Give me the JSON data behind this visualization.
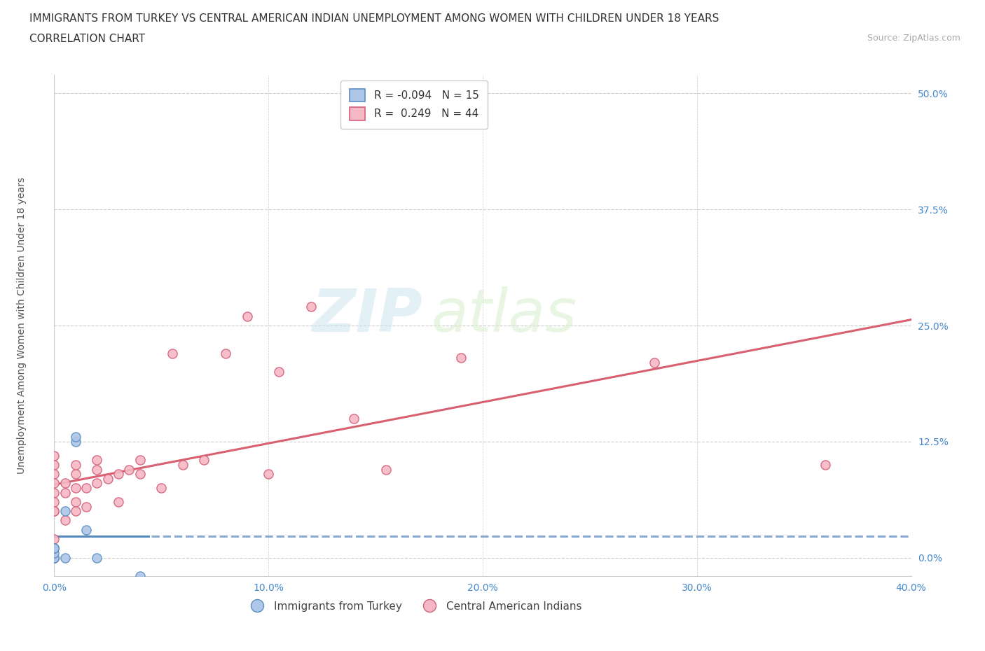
{
  "title_line1": "IMMIGRANTS FROM TURKEY VS CENTRAL AMERICAN INDIAN UNEMPLOYMENT AMONG WOMEN WITH CHILDREN UNDER 18 YEARS",
  "title_line2": "CORRELATION CHART",
  "source_text": "Source: ZipAtlas.com",
  "ylabel": "Unemployment Among Women with Children Under 18 years",
  "xlim": [
    0.0,
    0.4
  ],
  "ylim": [
    -0.02,
    0.52
  ],
  "yticks": [
    0.0,
    0.125,
    0.25,
    0.375,
    0.5
  ],
  "ytick_labels": [
    "0.0%",
    "12.5%",
    "25.0%",
    "37.5%",
    "50.0%"
  ],
  "xticks": [
    0.0,
    0.1,
    0.2,
    0.3,
    0.4
  ],
  "xtick_labels": [
    "0.0%",
    "10.0%",
    "20.0%",
    "30.0%",
    "40.0%"
  ],
  "grid_color": "#cccccc",
  "background_color": "#ffffff",
  "watermark_zip": "ZIP",
  "watermark_atlas": "atlas",
  "turkey_color": "#aec6e8",
  "turkey_edge_color": "#5a8fc2",
  "turkey_R": -0.094,
  "turkey_N": 15,
  "turkey_x": [
    0.0,
    0.0,
    0.0,
    0.0,
    0.0,
    0.0,
    0.0,
    0.0,
    0.005,
    0.005,
    0.01,
    0.01,
    0.015,
    0.02,
    0.04
  ],
  "turkey_y": [
    0.0,
    0.0,
    0.0,
    0.0,
    0.005,
    0.01,
    0.01,
    0.01,
    0.0,
    0.05,
    0.125,
    0.13,
    0.03,
    0.0,
    -0.02
  ],
  "cam_color": "#f5b8c4",
  "cam_edge_color": "#d4607a",
  "cam_R": 0.249,
  "cam_N": 44,
  "cam_x": [
    0.0,
    0.0,
    0.0,
    0.0,
    0.0,
    0.0,
    0.0,
    0.0,
    0.0,
    0.0,
    0.0,
    0.005,
    0.005,
    0.005,
    0.01,
    0.01,
    0.01,
    0.01,
    0.01,
    0.015,
    0.015,
    0.02,
    0.02,
    0.02,
    0.025,
    0.03,
    0.03,
    0.035,
    0.04,
    0.04,
    0.05,
    0.055,
    0.06,
    0.07,
    0.08,
    0.09,
    0.1,
    0.105,
    0.12,
    0.14,
    0.155,
    0.19,
    0.28,
    0.36
  ],
  "cam_y": [
    0.0,
    0.0,
    0.02,
    0.05,
    0.07,
    0.08,
    0.09,
    0.1,
    0.11,
    0.05,
    0.06,
    0.04,
    0.07,
    0.08,
    0.05,
    0.06,
    0.075,
    0.09,
    0.1,
    0.055,
    0.075,
    0.08,
    0.095,
    0.105,
    0.085,
    0.06,
    0.09,
    0.095,
    0.09,
    0.105,
    0.075,
    0.22,
    0.1,
    0.105,
    0.22,
    0.26,
    0.09,
    0.2,
    0.27,
    0.15,
    0.095,
    0.215,
    0.21,
    0.1
  ],
  "legend_turkey_label": "Immigrants from Turkey",
  "legend_cam_label": "Central American Indians",
  "title_fontsize": 11,
  "subtitle_fontsize": 11,
  "axis_label_fontsize": 10,
  "tick_fontsize": 10,
  "legend_fontsize": 11,
  "source_fontsize": 9,
  "marker_size": 90,
  "line_width": 2.2,
  "turkey_line_color": "#5588bb",
  "cam_line_color": "#d96070"
}
